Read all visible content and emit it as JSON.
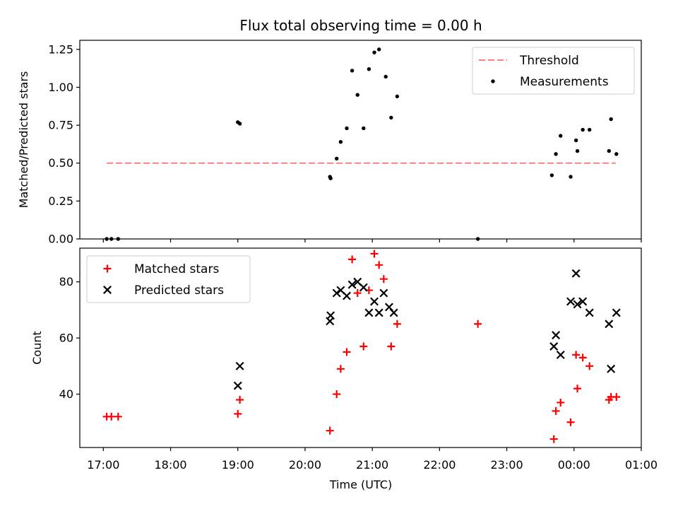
{
  "figure": {
    "title": "Flux total observing time = 0.00 h",
    "xlabel": "Time (UTC)"
  },
  "chart_data": [
    {
      "type": "scatter",
      "name": "ratio-panel",
      "ylabel": "Matched/Predicted stars",
      "xlim": [
        16.65,
        25.0
      ],
      "ylim": [
        0,
        1.31
      ],
      "yticks": [
        0.0,
        0.25,
        0.5,
        0.75,
        1.0,
        1.25
      ],
      "ytick_labels": [
        "0.00",
        "0.25",
        "0.50",
        "0.75",
        "1.00",
        "1.25"
      ],
      "xtick_values": [
        17,
        18,
        19,
        20,
        21,
        22,
        23,
        24,
        25
      ],
      "legend": {
        "position": "top-right",
        "entries": [
          "Threshold",
          "Measurements"
        ]
      },
      "threshold": {
        "name": "Threshold",
        "y": 0.5,
        "x_range": [
          17.05,
          24.62
        ],
        "color": "#ff7f7f",
        "style": "dashed"
      },
      "series": [
        {
          "name": "Measurements",
          "color": "#000000",
          "marker": "dot",
          "points": [
            [
              17.05,
              0.0
            ],
            [
              17.12,
              0.0
            ],
            [
              17.22,
              0.0
            ],
            [
              19.0,
              0.77
            ],
            [
              19.03,
              0.76
            ],
            [
              20.37,
              0.41
            ],
            [
              20.38,
              0.4
            ],
            [
              20.47,
              0.53
            ],
            [
              20.53,
              0.64
            ],
            [
              20.62,
              0.73
            ],
            [
              20.7,
              1.11
            ],
            [
              20.78,
              0.95
            ],
            [
              20.87,
              0.73
            ],
            [
              20.95,
              1.12
            ],
            [
              21.03,
              1.23
            ],
            [
              21.1,
              1.25
            ],
            [
              21.2,
              1.07
            ],
            [
              21.28,
              0.8
            ],
            [
              21.37,
              0.94
            ],
            [
              22.57,
              0.0
            ],
            [
              23.67,
              0.42
            ],
            [
              23.73,
              0.56
            ],
            [
              23.8,
              0.68
            ],
            [
              23.95,
              0.41
            ],
            [
              24.03,
              0.65
            ],
            [
              24.05,
              0.58
            ],
            [
              24.13,
              0.72
            ],
            [
              24.23,
              0.72
            ],
            [
              24.52,
              0.58
            ],
            [
              24.55,
              0.79
            ],
            [
              24.63,
              0.56
            ]
          ]
        }
      ]
    },
    {
      "type": "scatter",
      "name": "count-panel",
      "ylabel": "Count",
      "xlim": [
        16.65,
        25.0
      ],
      "ylim": [
        21,
        92
      ],
      "yticks": [
        40,
        60,
        80
      ],
      "ytick_labels": [
        "40",
        "60",
        "80"
      ],
      "xtick_values": [
        17,
        18,
        19,
        20,
        21,
        22,
        23,
        24,
        25
      ],
      "xtick_labels": [
        "17:00",
        "18:00",
        "19:00",
        "20:00",
        "21:00",
        "22:00",
        "23:00",
        "00:00",
        "01:00"
      ],
      "legend": {
        "position": "top-left",
        "entries": [
          "Matched stars",
          "Predicted stars"
        ]
      },
      "series": [
        {
          "name": "Matched stars",
          "color": "#ff0000",
          "marker": "plus",
          "points": [
            [
              17.05,
              32
            ],
            [
              17.12,
              32
            ],
            [
              17.22,
              32
            ],
            [
              19.0,
              33
            ],
            [
              19.03,
              38
            ],
            [
              20.37,
              27
            ],
            [
              20.47,
              40
            ],
            [
              20.53,
              49
            ],
            [
              20.62,
              55
            ],
            [
              20.7,
              88
            ],
            [
              20.78,
              76
            ],
            [
              20.87,
              57
            ],
            [
              20.95,
              77
            ],
            [
              21.03,
              90
            ],
            [
              21.1,
              86
            ],
            [
              21.17,
              81
            ],
            [
              21.28,
              57
            ],
            [
              21.37,
              65
            ],
            [
              22.57,
              65
            ],
            [
              23.7,
              24
            ],
            [
              23.73,
              34
            ],
            [
              23.8,
              37
            ],
            [
              23.95,
              30
            ],
            [
              24.03,
              54
            ],
            [
              24.05,
              42
            ],
            [
              24.13,
              53
            ],
            [
              24.23,
              50
            ],
            [
              24.52,
              38
            ],
            [
              24.55,
              39
            ],
            [
              24.63,
              39
            ]
          ]
        },
        {
          "name": "Predicted stars",
          "color": "#000000",
          "marker": "x",
          "points": [
            [
              19.0,
              43
            ],
            [
              19.03,
              50
            ],
            [
              20.37,
              66
            ],
            [
              20.38,
              68
            ],
            [
              20.47,
              76
            ],
            [
              20.53,
              77
            ],
            [
              20.62,
              75
            ],
            [
              20.7,
              79
            ],
            [
              20.78,
              80
            ],
            [
              20.87,
              78
            ],
            [
              20.95,
              69
            ],
            [
              21.03,
              73
            ],
            [
              21.1,
              69
            ],
            [
              21.17,
              76
            ],
            [
              21.25,
              71
            ],
            [
              21.32,
              69
            ],
            [
              23.7,
              57
            ],
            [
              23.73,
              61
            ],
            [
              23.8,
              54
            ],
            [
              23.95,
              73
            ],
            [
              24.03,
              83
            ],
            [
              24.05,
              72
            ],
            [
              24.13,
              73
            ],
            [
              24.23,
              69
            ],
            [
              24.52,
              65
            ],
            [
              24.55,
              49
            ],
            [
              24.63,
              69
            ]
          ]
        }
      ]
    }
  ]
}
